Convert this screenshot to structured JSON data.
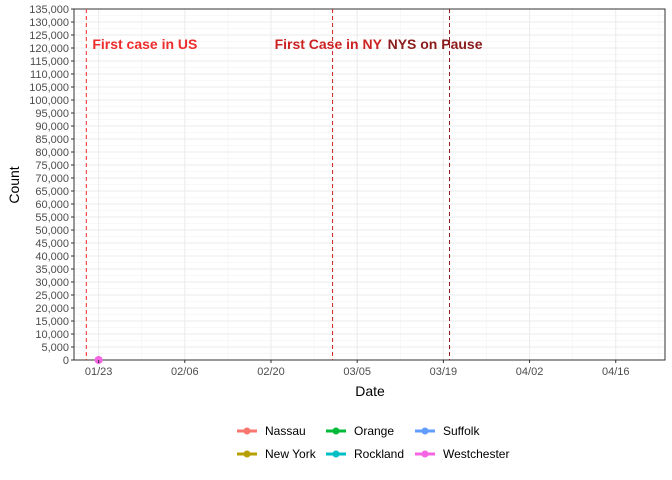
{
  "chart_data": {
    "type": "line",
    "xlabel": "Date",
    "ylabel": "Count",
    "x_ticks": [
      "01/23",
      "02/06",
      "02/20",
      "03/05",
      "03/19",
      "04/02",
      "04/16"
    ],
    "x_range": [
      "2020-01-19",
      "2020-04-24"
    ],
    "y_ticks": [
      0,
      5000,
      10000,
      15000,
      20000,
      25000,
      30000,
      35000,
      40000,
      45000,
      50000,
      55000,
      60000,
      65000,
      70000,
      75000,
      80000,
      85000,
      90000,
      95000,
      100000,
      105000,
      110000,
      115000,
      120000,
      125000,
      130000,
      135000
    ],
    "ylim": [
      0,
      135000
    ],
    "grid": true,
    "legend_placement": "bottom",
    "series": [
      {
        "name": "Nassau",
        "color": "#F8766D",
        "x": [],
        "y": []
      },
      {
        "name": "New York",
        "color": "#B79F00",
        "x": [],
        "y": []
      },
      {
        "name": "Orange",
        "color": "#00BA38",
        "x": [],
        "y": []
      },
      {
        "name": "Rockland",
        "color": "#00BFC4",
        "x": [],
        "y": []
      },
      {
        "name": "Suffolk",
        "color": "#619CFF",
        "x": [],
        "y": []
      },
      {
        "name": "Westchester",
        "color": "#F564E3",
        "x": [
          "2020-01-23"
        ],
        "y": [
          0
        ]
      }
    ],
    "annotations": [
      {
        "date": "2020-01-21",
        "label": "First case in US",
        "color": "#EE2C2C"
      },
      {
        "date": "2020-03-01",
        "label": "First Case in NY",
        "color": "#CC2222"
      },
      {
        "date": "2020-03-20",
        "label": "NYS on Pause",
        "color": "#8B1A1A"
      }
    ]
  }
}
